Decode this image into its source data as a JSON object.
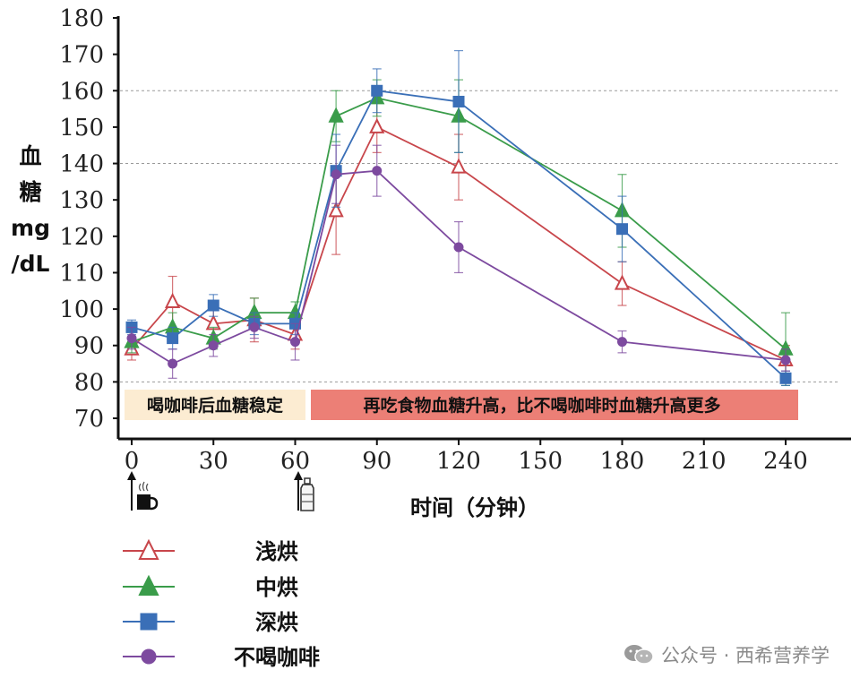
{
  "chart_data": {
    "type": "line",
    "ylabel_lines": [
      "血",
      "糖",
      "mg",
      "/dL"
    ],
    "xlabel": "时间（分钟）",
    "xlim": [
      0,
      240
    ],
    "ylim": [
      70,
      180
    ],
    "x_ticks": [
      0,
      30,
      60,
      90,
      120,
      150,
      180,
      210,
      240
    ],
    "y_ticks": [
      70,
      80,
      90,
      100,
      110,
      120,
      130,
      140,
      150,
      160,
      170,
      180
    ],
    "reference_lines_y": [
      80,
      140,
      160
    ],
    "series": [
      {
        "name": "浅烘",
        "color": "#c8464b",
        "marker": "triangle-open",
        "x": [
          0,
          15,
          30,
          45,
          60,
          75,
          90,
          120,
          180,
          240
        ],
        "y": [
          89,
          102,
          96,
          97,
          93,
          127,
          150,
          139,
          107,
          86
        ],
        "err": [
          3,
          7,
          4,
          6,
          4,
          12,
          7,
          9,
          6,
          4
        ]
      },
      {
        "name": "中烘",
        "color": "#3a9c4a",
        "marker": "triangle-filled",
        "x": [
          0,
          15,
          30,
          45,
          60,
          75,
          90,
          120,
          180,
          240
        ],
        "y": [
          91,
          95,
          92,
          99,
          99,
          153,
          158,
          153,
          127,
          89
        ],
        "err": [
          3,
          4,
          3,
          4,
          3,
          7,
          5,
          10,
          10,
          10
        ]
      },
      {
        "name": "深烘",
        "color": "#3a6fb7",
        "marker": "square",
        "x": [
          0,
          15,
          30,
          45,
          60,
          75,
          90,
          120,
          180,
          240
        ],
        "y": [
          95,
          92,
          101,
          96,
          96,
          138,
          160,
          157,
          122,
          81
        ],
        "err": [
          2,
          3,
          3,
          3,
          3,
          10,
          6,
          14,
          9,
          2
        ]
      },
      {
        "name": "不喝咖啡",
        "color": "#7d4a9f",
        "marker": "circle",
        "x": [
          0,
          15,
          30,
          45,
          60,
          75,
          90,
          120,
          180,
          240
        ],
        "y": [
          92,
          85,
          90,
          95,
          91,
          137,
          138,
          117,
          91,
          86
        ],
        "err": [
          3,
          4,
          3,
          3,
          5,
          8,
          7,
          7,
          3,
          3
        ]
      }
    ],
    "annotations": [
      {
        "text": "喝咖啡后血糖稳定",
        "bg": "#fcecd2"
      },
      {
        "text": "再吃食物血糖升高，比不喝咖啡时血糖升高更多",
        "bg": "#ec7f76"
      }
    ],
    "event_markers": [
      {
        "x": 0,
        "icon": "coffee-cup-icon"
      },
      {
        "x": 60,
        "icon": "bottle-icon"
      }
    ]
  },
  "watermark": {
    "text": "公众号 · 西希营养学",
    "icon": "wechat-icon"
  }
}
